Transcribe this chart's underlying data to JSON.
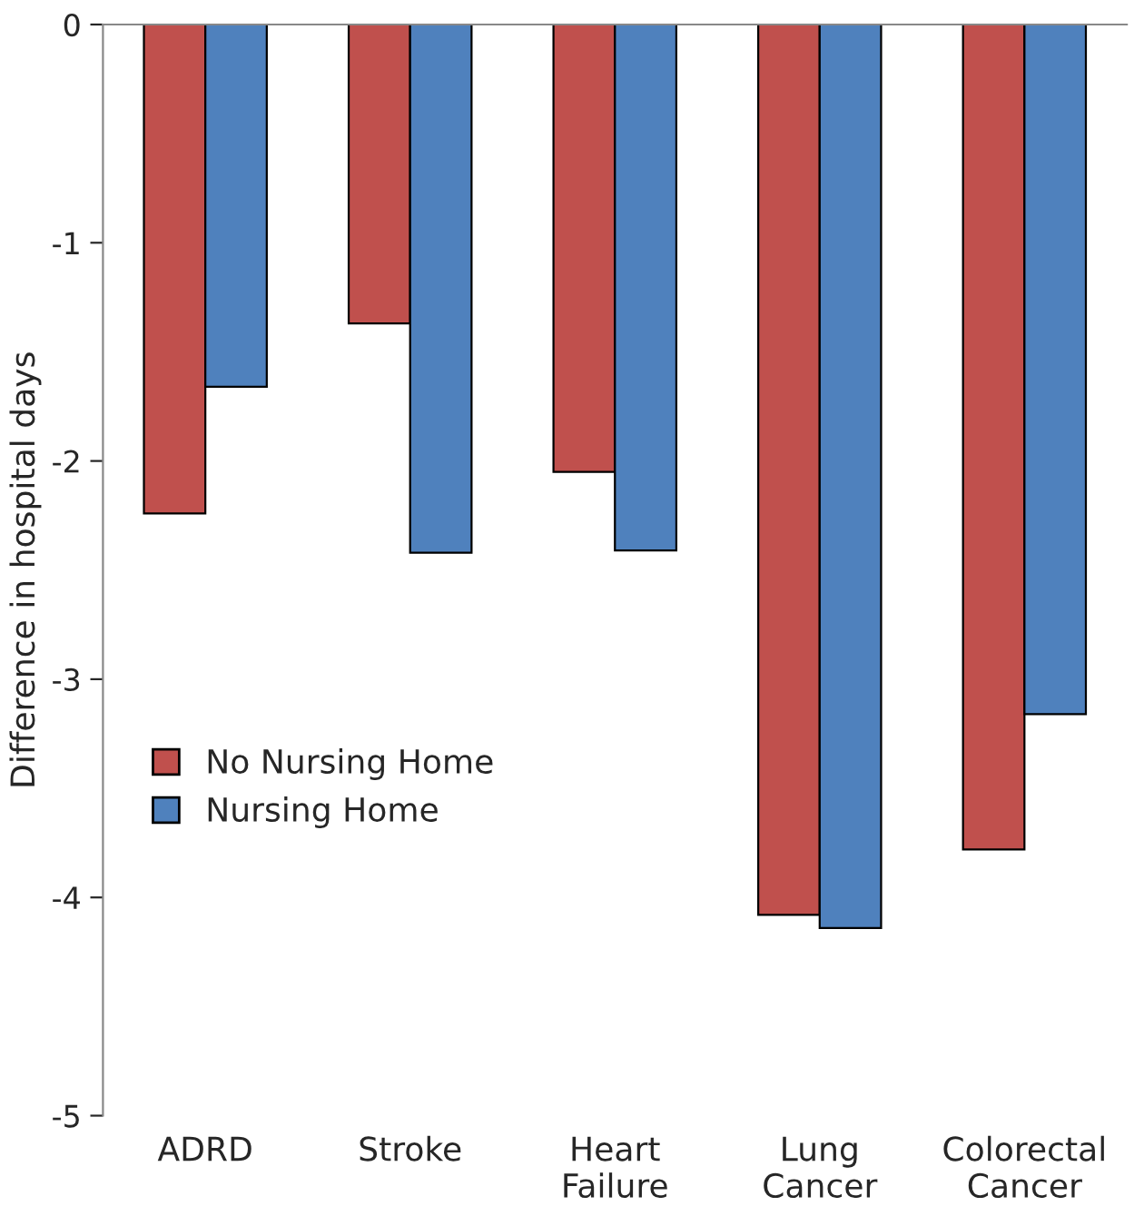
{
  "chart_data": {
    "type": "bar",
    "ylabel": "Difference in hospital days",
    "categories": [
      "ADRD",
      "Stroke",
      "Heart\nFailure",
      "Lung\nCancer",
      "Colorectal\nCancer"
    ],
    "series": [
      {
        "name": "No Nursing Home",
        "color": "#c0504d",
        "values": [
          -2.24,
          -1.37,
          -2.05,
          -4.08,
          -3.78
        ]
      },
      {
        "name": "Nursing Home",
        "color": "#4f81bd",
        "values": [
          -1.66,
          -2.42,
          -2.41,
          -4.14,
          -3.16
        ]
      }
    ],
    "ylim": [
      -5,
      0
    ],
    "yticks": [
      -5,
      -4,
      -3,
      -2,
      -1,
      0
    ],
    "grid": false,
    "legend": "left"
  }
}
